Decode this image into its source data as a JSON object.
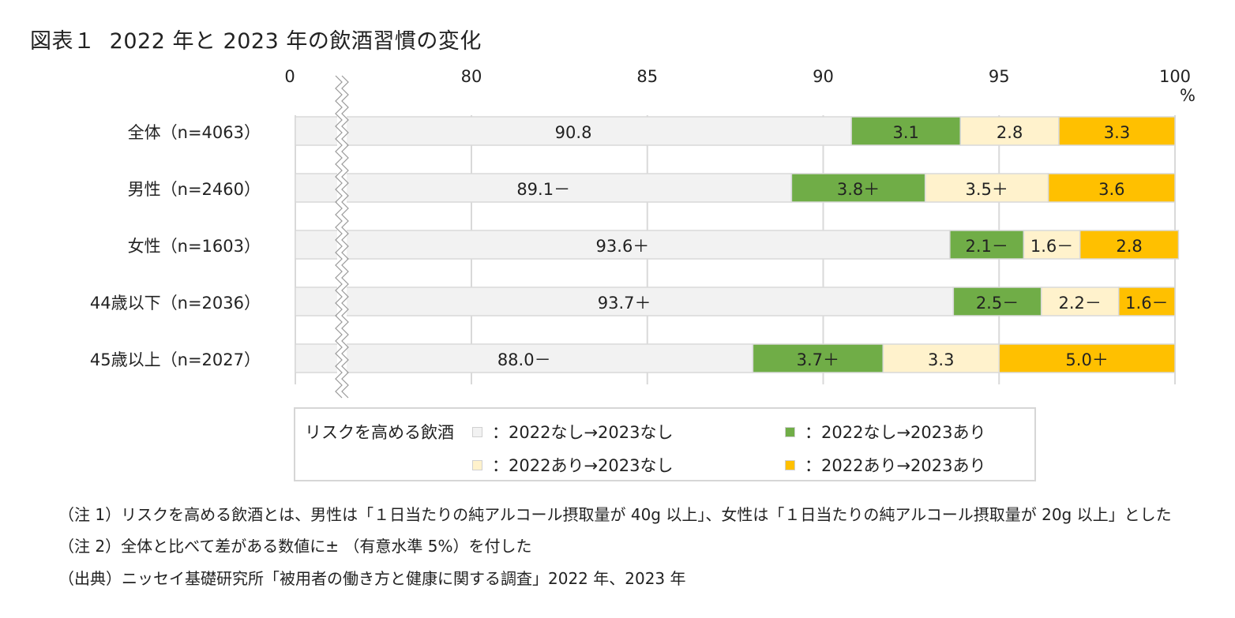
{
  "title": {
    "figure_no": "図表１",
    "text": "2022 年と 2023 年の飲酒習慣の変化"
  },
  "colors": {
    "none_none": "#f2f2f2",
    "none_yes": "#70ad47",
    "yes_none": "#fff2cc",
    "yes_yes": "#ffc000",
    "grid": "#d9d9d9"
  },
  "chart_data": {
    "type": "bar",
    "orientation": "horizontal",
    "stacked": true,
    "xlim": [
      0,
      100
    ],
    "x_axis_break": true,
    "x_ticks": [
      "0",
      "80",
      "85",
      "90",
      "95",
      "100"
    ],
    "x_unit": "%",
    "categories": [
      "全体（n=4063）",
      "男性（n=2460）",
      "女性（n=1603）",
      "44歳以下（n=2036）",
      "45歳以上（n=2027）"
    ],
    "series": [
      {
        "name": "：2022なし→2023なし",
        "values": [
          90.8,
          89.1,
          93.6,
          93.7,
          88.0
        ],
        "labels": [
          "90.8",
          "89.1－",
          "93.6＋",
          "93.7＋",
          "88.0－"
        ]
      },
      {
        "name": "：2022なし→2023あり",
        "values": [
          3.1,
          3.8,
          2.1,
          2.5,
          3.7
        ],
        "labels": [
          "3.1",
          "3.8＋",
          "2.1－",
          "2.5－",
          "3.7＋"
        ]
      },
      {
        "name": "：2022あり→2023なし",
        "values": [
          2.8,
          3.5,
          1.6,
          2.2,
          3.3
        ],
        "labels": [
          "2.8",
          "3.5＋",
          "1.6－",
          "2.2－",
          "3.3"
        ]
      },
      {
        "name": "：2022あり→2023あり",
        "values": [
          3.3,
          3.6,
          2.8,
          1.6,
          5.0
        ],
        "labels": [
          "3.3",
          "3.6",
          "2.8",
          "1.6－",
          "5.0＋"
        ]
      }
    ],
    "legend": {
      "title": "リスクを高める飲酒",
      "position": "bottom"
    }
  },
  "notes": [
    "（注 1）リスクを高める飲酒とは、男性は「１日当たりの純アルコール摂取量が 40g 以上」、女性は「１日当たりの純アルコール摂取量が 20g 以上」とした",
    "（注 2）全体と比べて差がある数値に± （有意水準 5%）を付した",
    "（出典）ニッセイ基礎研究所「被用者の働き方と健康に関する調査」2022 年、2023 年"
  ]
}
